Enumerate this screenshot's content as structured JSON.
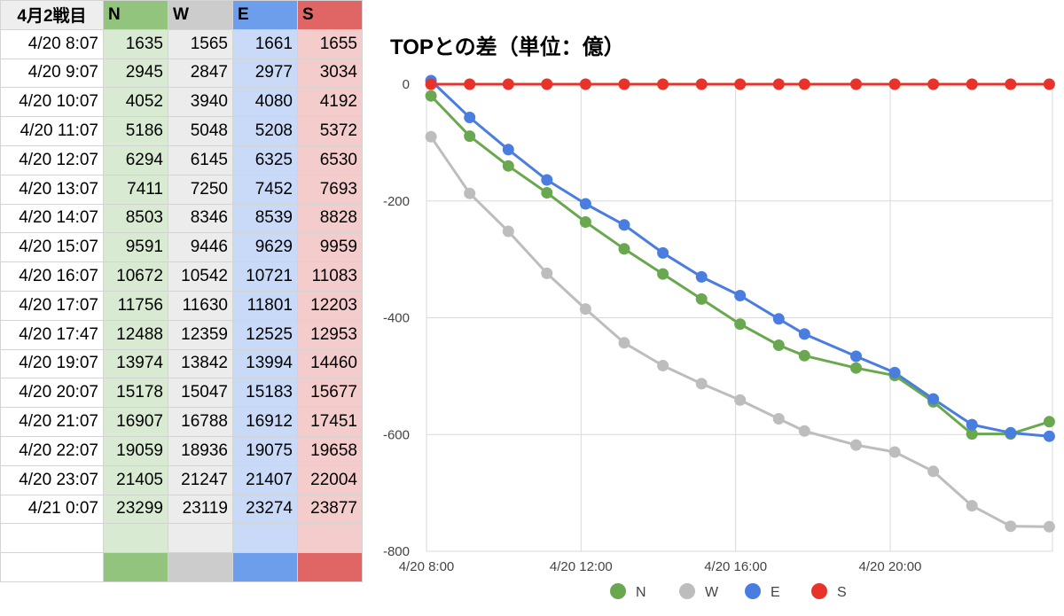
{
  "table": {
    "corner": "4月2戦目",
    "columns": [
      {
        "label": "N",
        "bg": "#d9ead3",
        "header_bg": "#93c47d"
      },
      {
        "label": "W",
        "bg": "#ececec",
        "header_bg": "#cccccc"
      },
      {
        "label": "E",
        "bg": "#c9daf8",
        "header_bg": "#6d9eeb"
      },
      {
        "label": "S",
        "bg": "#f4cccc",
        "header_bg": "#e06666"
      }
    ],
    "rows": [
      {
        "time": "4/20 8:07",
        "values": [
          "1635",
          "1565",
          "1661",
          "1655"
        ]
      },
      {
        "time": "4/20 9:07",
        "values": [
          "2945",
          "2847",
          "2977",
          "3034"
        ]
      },
      {
        "time": "4/20 10:07",
        "values": [
          "4052",
          "3940",
          "4080",
          "4192"
        ]
      },
      {
        "time": "4/20 11:07",
        "values": [
          "5186",
          "5048",
          "5208",
          "5372"
        ]
      },
      {
        "time": "4/20 12:07",
        "values": [
          "6294",
          "6145",
          "6325",
          "6530"
        ]
      },
      {
        "time": "4/20 13:07",
        "values": [
          "7411",
          "7250",
          "7452",
          "7693"
        ]
      },
      {
        "time": "4/20 14:07",
        "values": [
          "8503",
          "8346",
          "8539",
          "8828"
        ]
      },
      {
        "time": "4/20 15:07",
        "values": [
          "9591",
          "9446",
          "9629",
          "9959"
        ]
      },
      {
        "time": "4/20 16:07",
        "values": [
          "10672",
          "10542",
          "10721",
          "11083"
        ]
      },
      {
        "time": "4/20 17:07",
        "values": [
          "11756",
          "11630",
          "11801",
          "12203"
        ]
      },
      {
        "time": "4/20 17:47",
        "values": [
          "12488",
          "12359",
          "12525",
          "12953"
        ]
      },
      {
        "time": "4/20 19:07",
        "values": [
          "13974",
          "13842",
          "13994",
          "14460"
        ]
      },
      {
        "time": "4/20 20:07",
        "values": [
          "15178",
          "15047",
          "15183",
          "15677"
        ]
      },
      {
        "time": "4/20 21:07",
        "values": [
          "16907",
          "16788",
          "16912",
          "17451"
        ]
      },
      {
        "time": "4/20 22:07",
        "values": [
          "19059",
          "18936",
          "19075",
          "19658"
        ]
      },
      {
        "time": "4/20 23:07",
        "values": [
          "21405",
          "21247",
          "21407",
          "22004"
        ]
      },
      {
        "time": "4/21 0:07",
        "values": [
          "23299",
          "23119",
          "23274",
          "23877"
        ]
      }
    ]
  },
  "chart_data": {
    "type": "line",
    "title": "TOPとの差（単位：億）",
    "x_hours": [
      8.117,
      9.117,
      10.117,
      11.117,
      12.117,
      13.117,
      14.117,
      15.117,
      16.117,
      17.117,
      17.783,
      19.117,
      20.117,
      21.117,
      22.117,
      23.117,
      24.117
    ],
    "series": [
      {
        "name": "N",
        "color": "#6aa84f",
        "values": [
          -20,
          -89,
          -140,
          -186,
          -236,
          -282,
          -325,
          -368,
          -411,
          -447,
          -465,
          -486,
          -499,
          -544,
          -599,
          -599,
          -578
        ]
      },
      {
        "name": "W",
        "color": "#bdbdbd",
        "values": [
          -90,
          -187,
          -252,
          -324,
          -385,
          -443,
          -482,
          -513,
          -541,
          -573,
          -594,
          -618,
          -630,
          -663,
          -722,
          -757,
          -758
        ]
      },
      {
        "name": "E",
        "color": "#4a7de0",
        "values": [
          6,
          -57,
          -112,
          -164,
          -205,
          -241,
          -289,
          -330,
          -362,
          -402,
          -428,
          -466,
          -494,
          -539,
          -583,
          -597,
          -603
        ]
      },
      {
        "name": "S",
        "color": "#e8332a",
        "values": [
          0,
          0,
          0,
          0,
          0,
          0,
          0,
          0,
          0,
          0,
          0,
          0,
          0,
          0,
          0,
          0,
          0
        ]
      }
    ],
    "ylim": [
      -800,
      0
    ],
    "yticks": [
      0,
      -200,
      -400,
      -600,
      -800
    ],
    "ytick_labels": [
      "0",
      "-200",
      "-400",
      "-600",
      "-800"
    ],
    "xlim": [
      8,
      24.2
    ],
    "xticks": [
      8,
      12,
      16,
      20
    ],
    "xtick_labels": [
      "4/20 8:00",
      "4/20 12:00",
      "4/20 16:00",
      "4/20 20:00"
    ],
    "legend": [
      "N",
      "W",
      "E",
      "S"
    ],
    "legend_position": "bottom"
  }
}
